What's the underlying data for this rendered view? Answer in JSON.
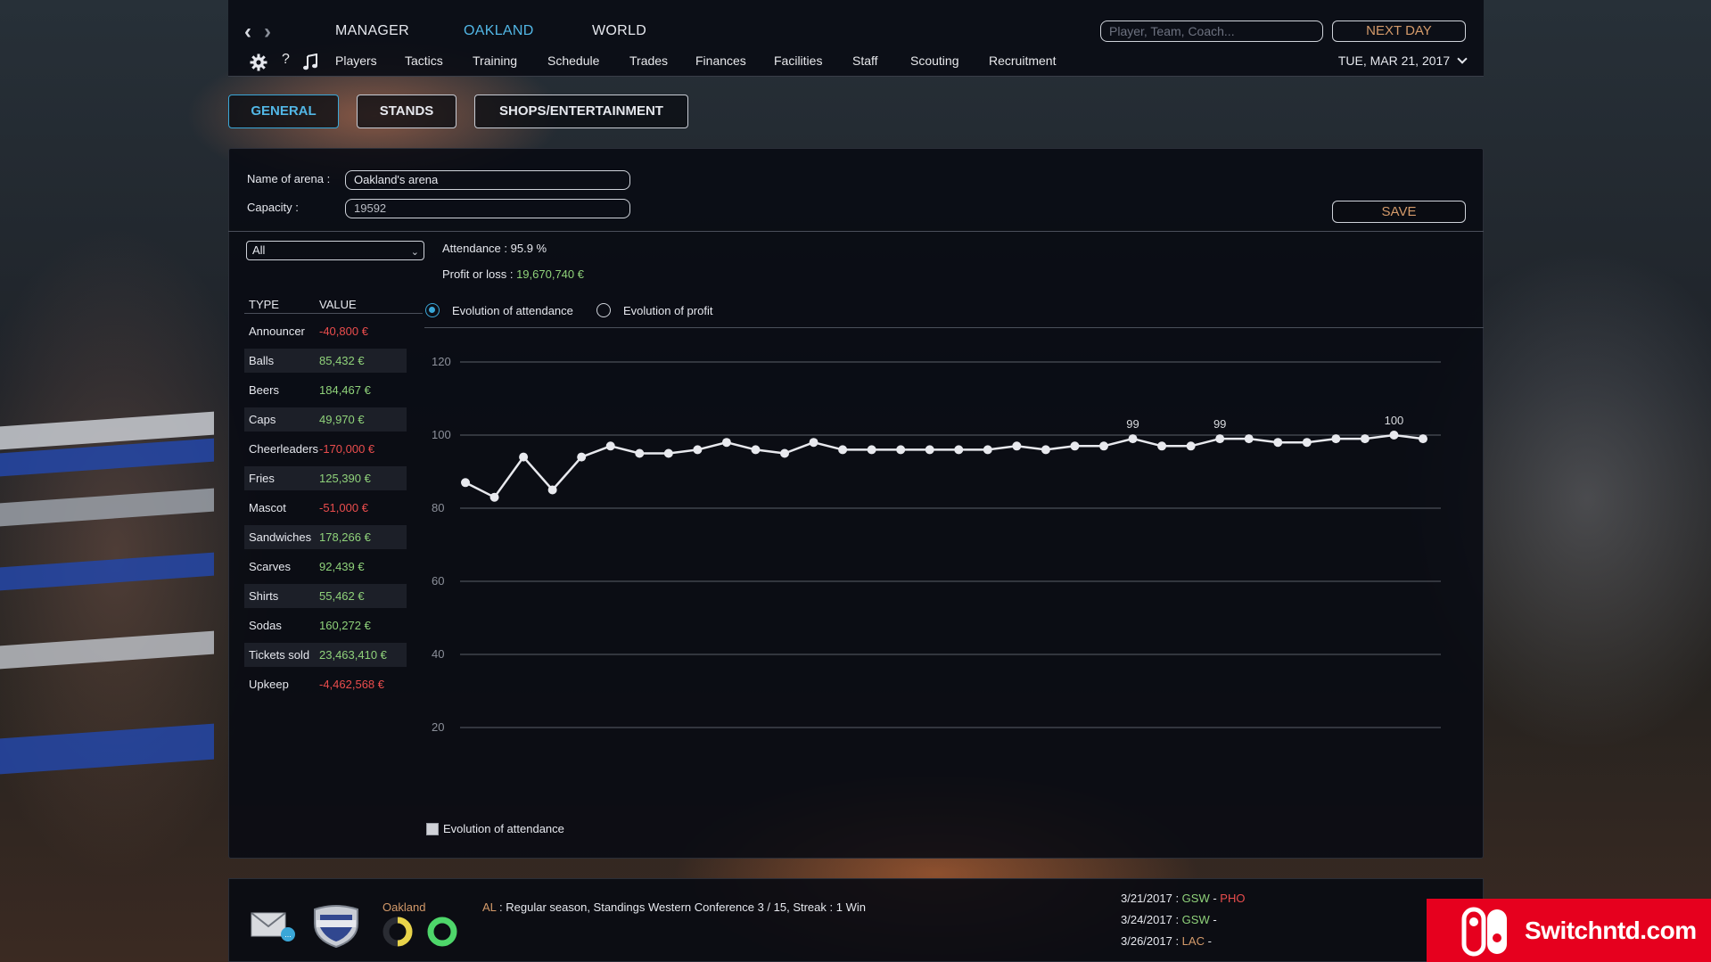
{
  "nav": {
    "back": "‹",
    "forward": "›",
    "items": [
      "MANAGER",
      "OAKLAND",
      "WORLD"
    ],
    "active": "OAKLAND",
    "search_placeholder": "Player, Team, Coach...",
    "next_day": "NEXT DAY"
  },
  "subnav": {
    "items": [
      "Players",
      "Tactics",
      "Training",
      "Schedule",
      "Trades",
      "Finances",
      "Facilities",
      "Staff",
      "Scouting",
      "Recruitment"
    ],
    "help": "?",
    "date": "TUE, MAR 21, 2017"
  },
  "tabs": [
    "GENERAL",
    "STANDS",
    "SHOPS/ENTERTAINMENT"
  ],
  "arena": {
    "name_label": "Name of arena :",
    "name_value": "Oakland's arena",
    "capacity_label": "Capacity :",
    "capacity_value": "19592",
    "save": "SAVE"
  },
  "filter": {
    "selected": "All"
  },
  "stats": {
    "attendance_label": "Attendance : ",
    "attendance_value": "95.9 %",
    "profit_label": "Profit or loss : ",
    "profit_value": "19,670,740 €"
  },
  "table": {
    "headers": [
      "TYPE",
      "VALUE"
    ],
    "rows": [
      {
        "type": "Announcer",
        "value": "-40,800 €",
        "sign": "neg"
      },
      {
        "type": "Balls",
        "value": "85,432 €",
        "sign": "pos"
      },
      {
        "type": "Beers",
        "value": "184,467 €",
        "sign": "pos"
      },
      {
        "type": "Caps",
        "value": "49,970 €",
        "sign": "pos"
      },
      {
        "type": "Cheerleaders",
        "value": "-170,000 €",
        "sign": "neg"
      },
      {
        "type": "Fries",
        "value": "125,390 €",
        "sign": "pos"
      },
      {
        "type": "Mascot",
        "value": "-51,000 €",
        "sign": "neg"
      },
      {
        "type": "Sandwiches",
        "value": "178,266 €",
        "sign": "pos"
      },
      {
        "type": "Scarves",
        "value": "92,439 €",
        "sign": "pos"
      },
      {
        "type": "Shirts",
        "value": "55,462 €",
        "sign": "pos"
      },
      {
        "type": "Sodas",
        "value": "160,272 €",
        "sign": "pos"
      },
      {
        "type": "Tickets sold",
        "value": "23,463,410 €",
        "sign": "pos"
      },
      {
        "type": "Upkeep",
        "value": "-4,462,568 €",
        "sign": "neg"
      }
    ]
  },
  "chart_options": {
    "option1": "Evolution of attendance",
    "option2": "Evolution of profit",
    "selected": "option1"
  },
  "chart_data": {
    "type": "line",
    "legend": "Evolution of attendance",
    "ylim": [
      20,
      120
    ],
    "yticks": [
      20,
      40,
      60,
      80,
      100,
      120
    ],
    "grid": true,
    "series": [
      {
        "name": "Evolution of attendance",
        "values": [
          87,
          83,
          94,
          85,
          94,
          97,
          95,
          95,
          96,
          98,
          96,
          95,
          98,
          96,
          96,
          96,
          96,
          96,
          96,
          97,
          96,
          97,
          97,
          99,
          97,
          97,
          99,
          99,
          98,
          98,
          99,
          99,
          100,
          99
        ]
      }
    ],
    "labeled_points": [
      {
        "index": 23,
        "label": "99"
      },
      {
        "index": 26,
        "label": "99"
      },
      {
        "index": 32,
        "label": "100"
      }
    ],
    "line_color": "#e8e9ee"
  },
  "footer": {
    "team": "Oakland",
    "league": "AL",
    "status": " : Regular season, Standings Western Conference 3 / 15, Streak : 1 Win",
    "games": [
      {
        "date": "3/21/2017 : ",
        "home": "GSW",
        "sep": " - ",
        "away": "PHO"
      },
      {
        "date": "3/24/2017 : ",
        "home": "GSW",
        "sep": " - ",
        "away": ""
      },
      {
        "date": "3/26/2017 : ",
        "home": "LAC",
        "sep": " - ",
        "away": ""
      }
    ]
  },
  "watermark": {
    "text": "Switchntd.com"
  }
}
